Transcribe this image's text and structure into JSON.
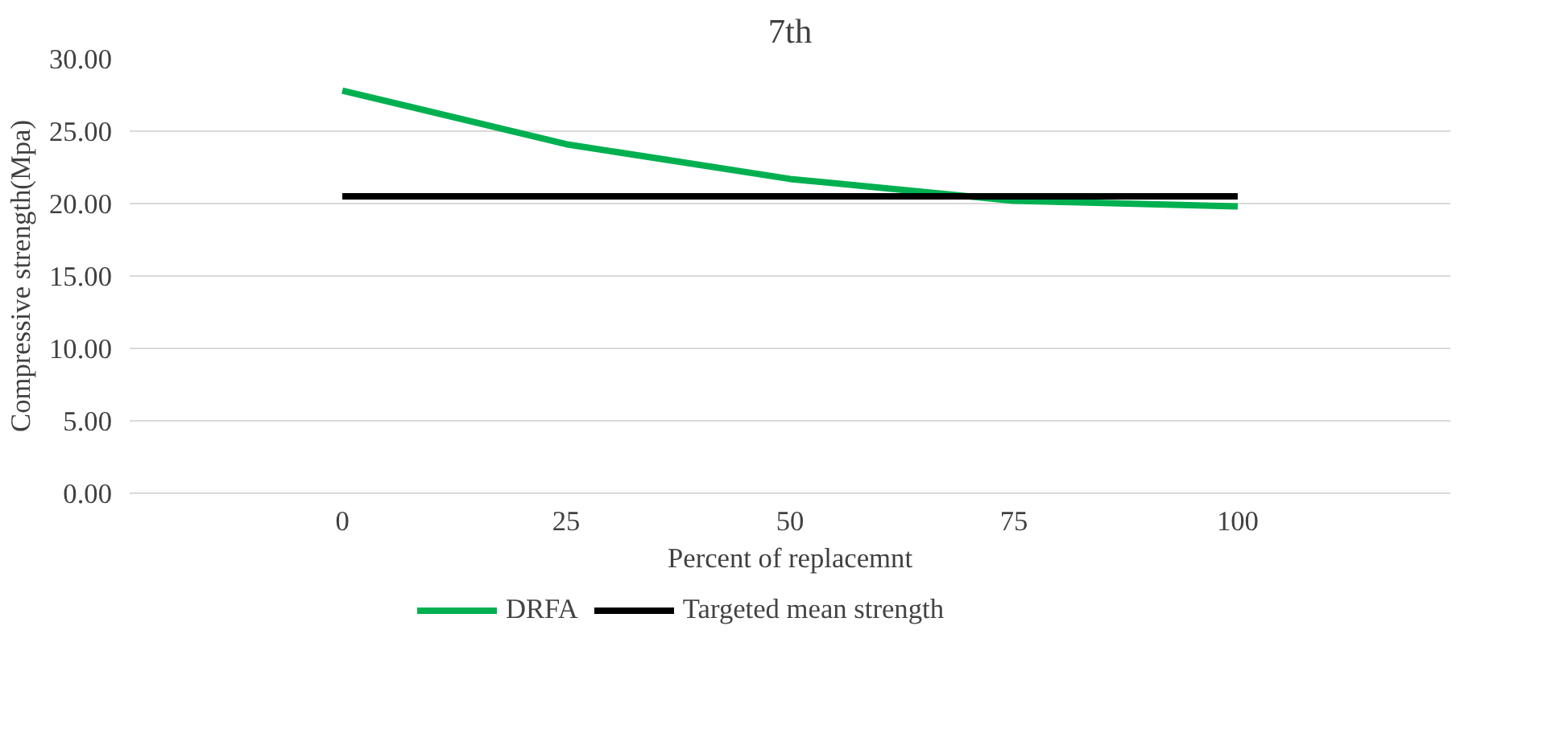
{
  "chart_data": {
    "type": "line",
    "title": "7th",
    "xlabel": "Percent of replacemnt",
    "ylabel": "Compressive strength(Mpa)",
    "categories": [
      "0",
      "25",
      "50",
      "75",
      "100"
    ],
    "series": [
      {
        "name": "DRFA",
        "color": "#00b050",
        "values": [
          27.8,
          24.1,
          21.7,
          20.2,
          19.8
        ]
      },
      {
        "name": "Targeted mean strength",
        "color": "#000000",
        "values": [
          20.5,
          20.5,
          20.5,
          20.5,
          20.5
        ]
      }
    ],
    "ylim": [
      0,
      30
    ],
    "yticks": [
      {
        "value": 0,
        "label": "0.00"
      },
      {
        "value": 5,
        "label": "5.00"
      },
      {
        "value": 10,
        "label": "10.00"
      },
      {
        "value": 15,
        "label": "15.00"
      },
      {
        "value": 20,
        "label": "20.00"
      },
      {
        "value": 25,
        "label": "25.00"
      },
      {
        "value": 30,
        "label": "30.00"
      }
    ],
    "grid": "y",
    "legend": "bottom",
    "marker": "none",
    "line_style": "solid"
  }
}
